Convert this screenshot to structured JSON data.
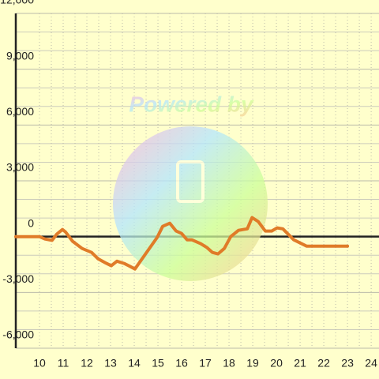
{
  "chart_data": {
    "type": "line",
    "watermark": "Powered by",
    "xlim": [
      9,
      24.33
    ],
    "ylim": [
      -6000,
      12000
    ],
    "xticks": [
      10,
      11,
      12,
      13,
      14,
      15,
      16,
      17,
      18,
      19,
      20,
      21,
      22,
      23,
      24
    ],
    "yticks": [
      {
        "value": -6000,
        "label": "-6,000"
      },
      {
        "value": -3000,
        "label": "-3,000"
      },
      0,
      {
        "value": 3000,
        "label": "3,000"
      },
      {
        "value": 6000,
        "label": "6,000"
      },
      {
        "value": 9000,
        "label": "9,000"
      },
      {
        "value": 12000,
        "label": "12,000"
      }
    ],
    "y_minor_ticks": [
      -5000,
      -4000,
      -2000,
      -1000,
      1000,
      2000,
      4000,
      5000,
      7000,
      8000,
      10000,
      11000
    ],
    "x_minor_ticks": [
      10.5,
      11.5,
      12.5,
      13.5,
      14.5,
      15.5,
      16.5,
      17.5,
      18.5,
      19.5,
      20.5,
      21.5,
      22.5,
      23.5
    ],
    "grid": true,
    "series": [
      {
        "color": "#e07b28",
        "x": [
          9.0,
          10.0,
          10.23,
          10.53,
          10.73,
          10.97,
          11.1,
          11.4,
          11.8,
          12.2,
          12.47,
          12.83,
          13.03,
          13.27,
          13.57,
          13.77,
          14.03,
          14.5,
          14.97,
          15.2,
          15.5,
          15.77,
          16.0,
          16.23,
          16.43,
          16.8,
          17.07,
          17.3,
          17.53,
          17.8,
          18.07,
          18.4,
          18.77,
          18.97,
          19.23,
          19.53,
          19.8,
          20.03,
          20.27,
          20.73,
          21.27,
          23.0
        ],
        "values": [
          0,
          0,
          -130,
          -200,
          130,
          380,
          250,
          -250,
          -640,
          -850,
          -1190,
          -1440,
          -1570,
          -1320,
          -1440,
          -1570,
          -1740,
          -890,
          -40,
          550,
          720,
          300,
          170,
          -170,
          -170,
          -380,
          -590,
          -850,
          -930,
          -640,
          0,
          340,
          420,
          1020,
          810,
          300,
          300,
          470,
          420,
          -170,
          -510,
          -510
        ]
      }
    ]
  }
}
